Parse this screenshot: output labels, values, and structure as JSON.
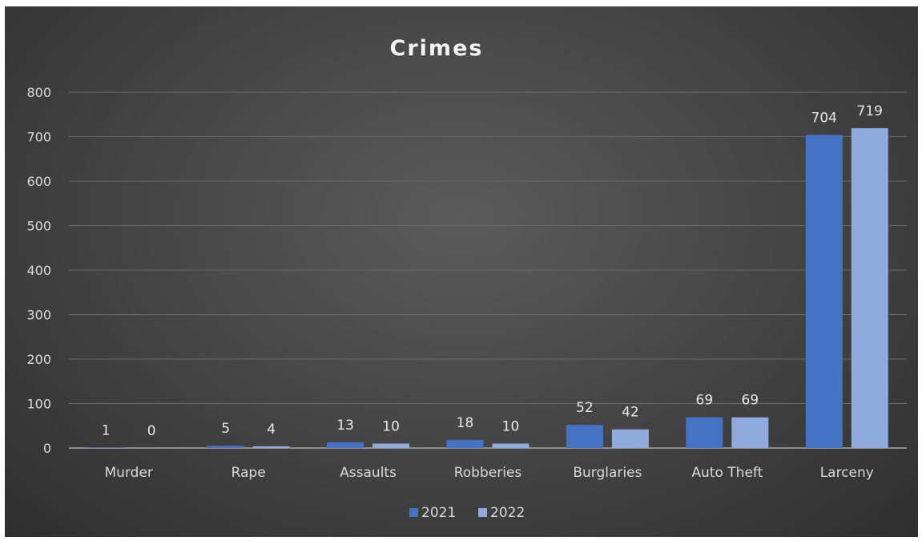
{
  "chart_data": {
    "type": "bar",
    "title": "Crimes",
    "xlabel": "",
    "ylabel": "",
    "ylim": [
      0,
      800
    ],
    "yticks": [
      0,
      100,
      200,
      300,
      400,
      500,
      600,
      700,
      800
    ],
    "grid": true,
    "legend_position": "bottom",
    "categories": [
      "Murder",
      "Rape",
      "Assaults",
      "Robberies",
      "Burglaries",
      "Auto Theft",
      "Larceny"
    ],
    "series": [
      {
        "name": "2021",
        "color": "#4472c4",
        "values": [
          1,
          5,
          13,
          18,
          52,
          69,
          704
        ]
      },
      {
        "name": "2022",
        "color": "#8faadc",
        "values": [
          0,
          4,
          10,
          10,
          42,
          69,
          719
        ]
      }
    ]
  }
}
